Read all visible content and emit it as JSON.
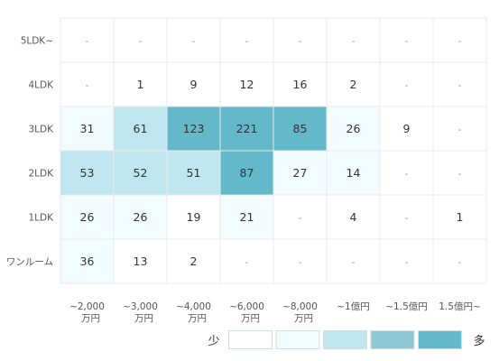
{
  "chart_data": {
    "type": "heatmap",
    "rows": [
      "5LDK~",
      "4LDK",
      "3LDK",
      "2LDK",
      "1LDK",
      "ワンルーム"
    ],
    "columns": [
      [
        "~2,000",
        "万円"
      ],
      [
        "~3,000",
        "万円"
      ],
      [
        "~4,000",
        "万円"
      ],
      [
        "~6,000",
        "万円"
      ],
      [
        "~8,000",
        "万円"
      ],
      [
        "~1億円"
      ],
      [
        "~1.5億円"
      ],
      [
        "1.5億円~"
      ]
    ],
    "values": [
      [
        null,
        null,
        null,
        null,
        null,
        null,
        null,
        null
      ],
      [
        null,
        1,
        9,
        12,
        16,
        2,
        null,
        null
      ],
      [
        31,
        61,
        123,
        221,
        85,
        26,
        9,
        null
      ],
      [
        53,
        52,
        51,
        87,
        27,
        14,
        null,
        null
      ],
      [
        26,
        26,
        19,
        21,
        null,
        4,
        null,
        1
      ],
      [
        36,
        13,
        2,
        null,
        null,
        null,
        null,
        null
      ]
    ],
    "levels": [
      [
        0,
        0,
        0,
        0,
        0,
        0,
        0,
        0
      ],
      [
        0,
        0,
        0,
        0,
        0,
        0,
        0,
        0
      ],
      [
        1,
        2,
        4,
        4,
        4,
        1,
        0,
        0
      ],
      [
        2,
        2,
        2,
        4,
        1,
        1,
        0,
        0
      ],
      [
        1,
        1,
        0,
        1,
        0,
        0,
        0,
        0
      ],
      [
        1,
        0,
        0,
        0,
        0,
        0,
        0,
        0
      ]
    ],
    "empty_mark": "-",
    "legend": {
      "low_label": "少",
      "high_label": "多",
      "colors": [
        "#ffffff",
        "#f2fbfd",
        "#bfe6ef",
        "#8ec8d5",
        "#63b8c9"
      ]
    },
    "grid_color": "#e8e8e8"
  }
}
